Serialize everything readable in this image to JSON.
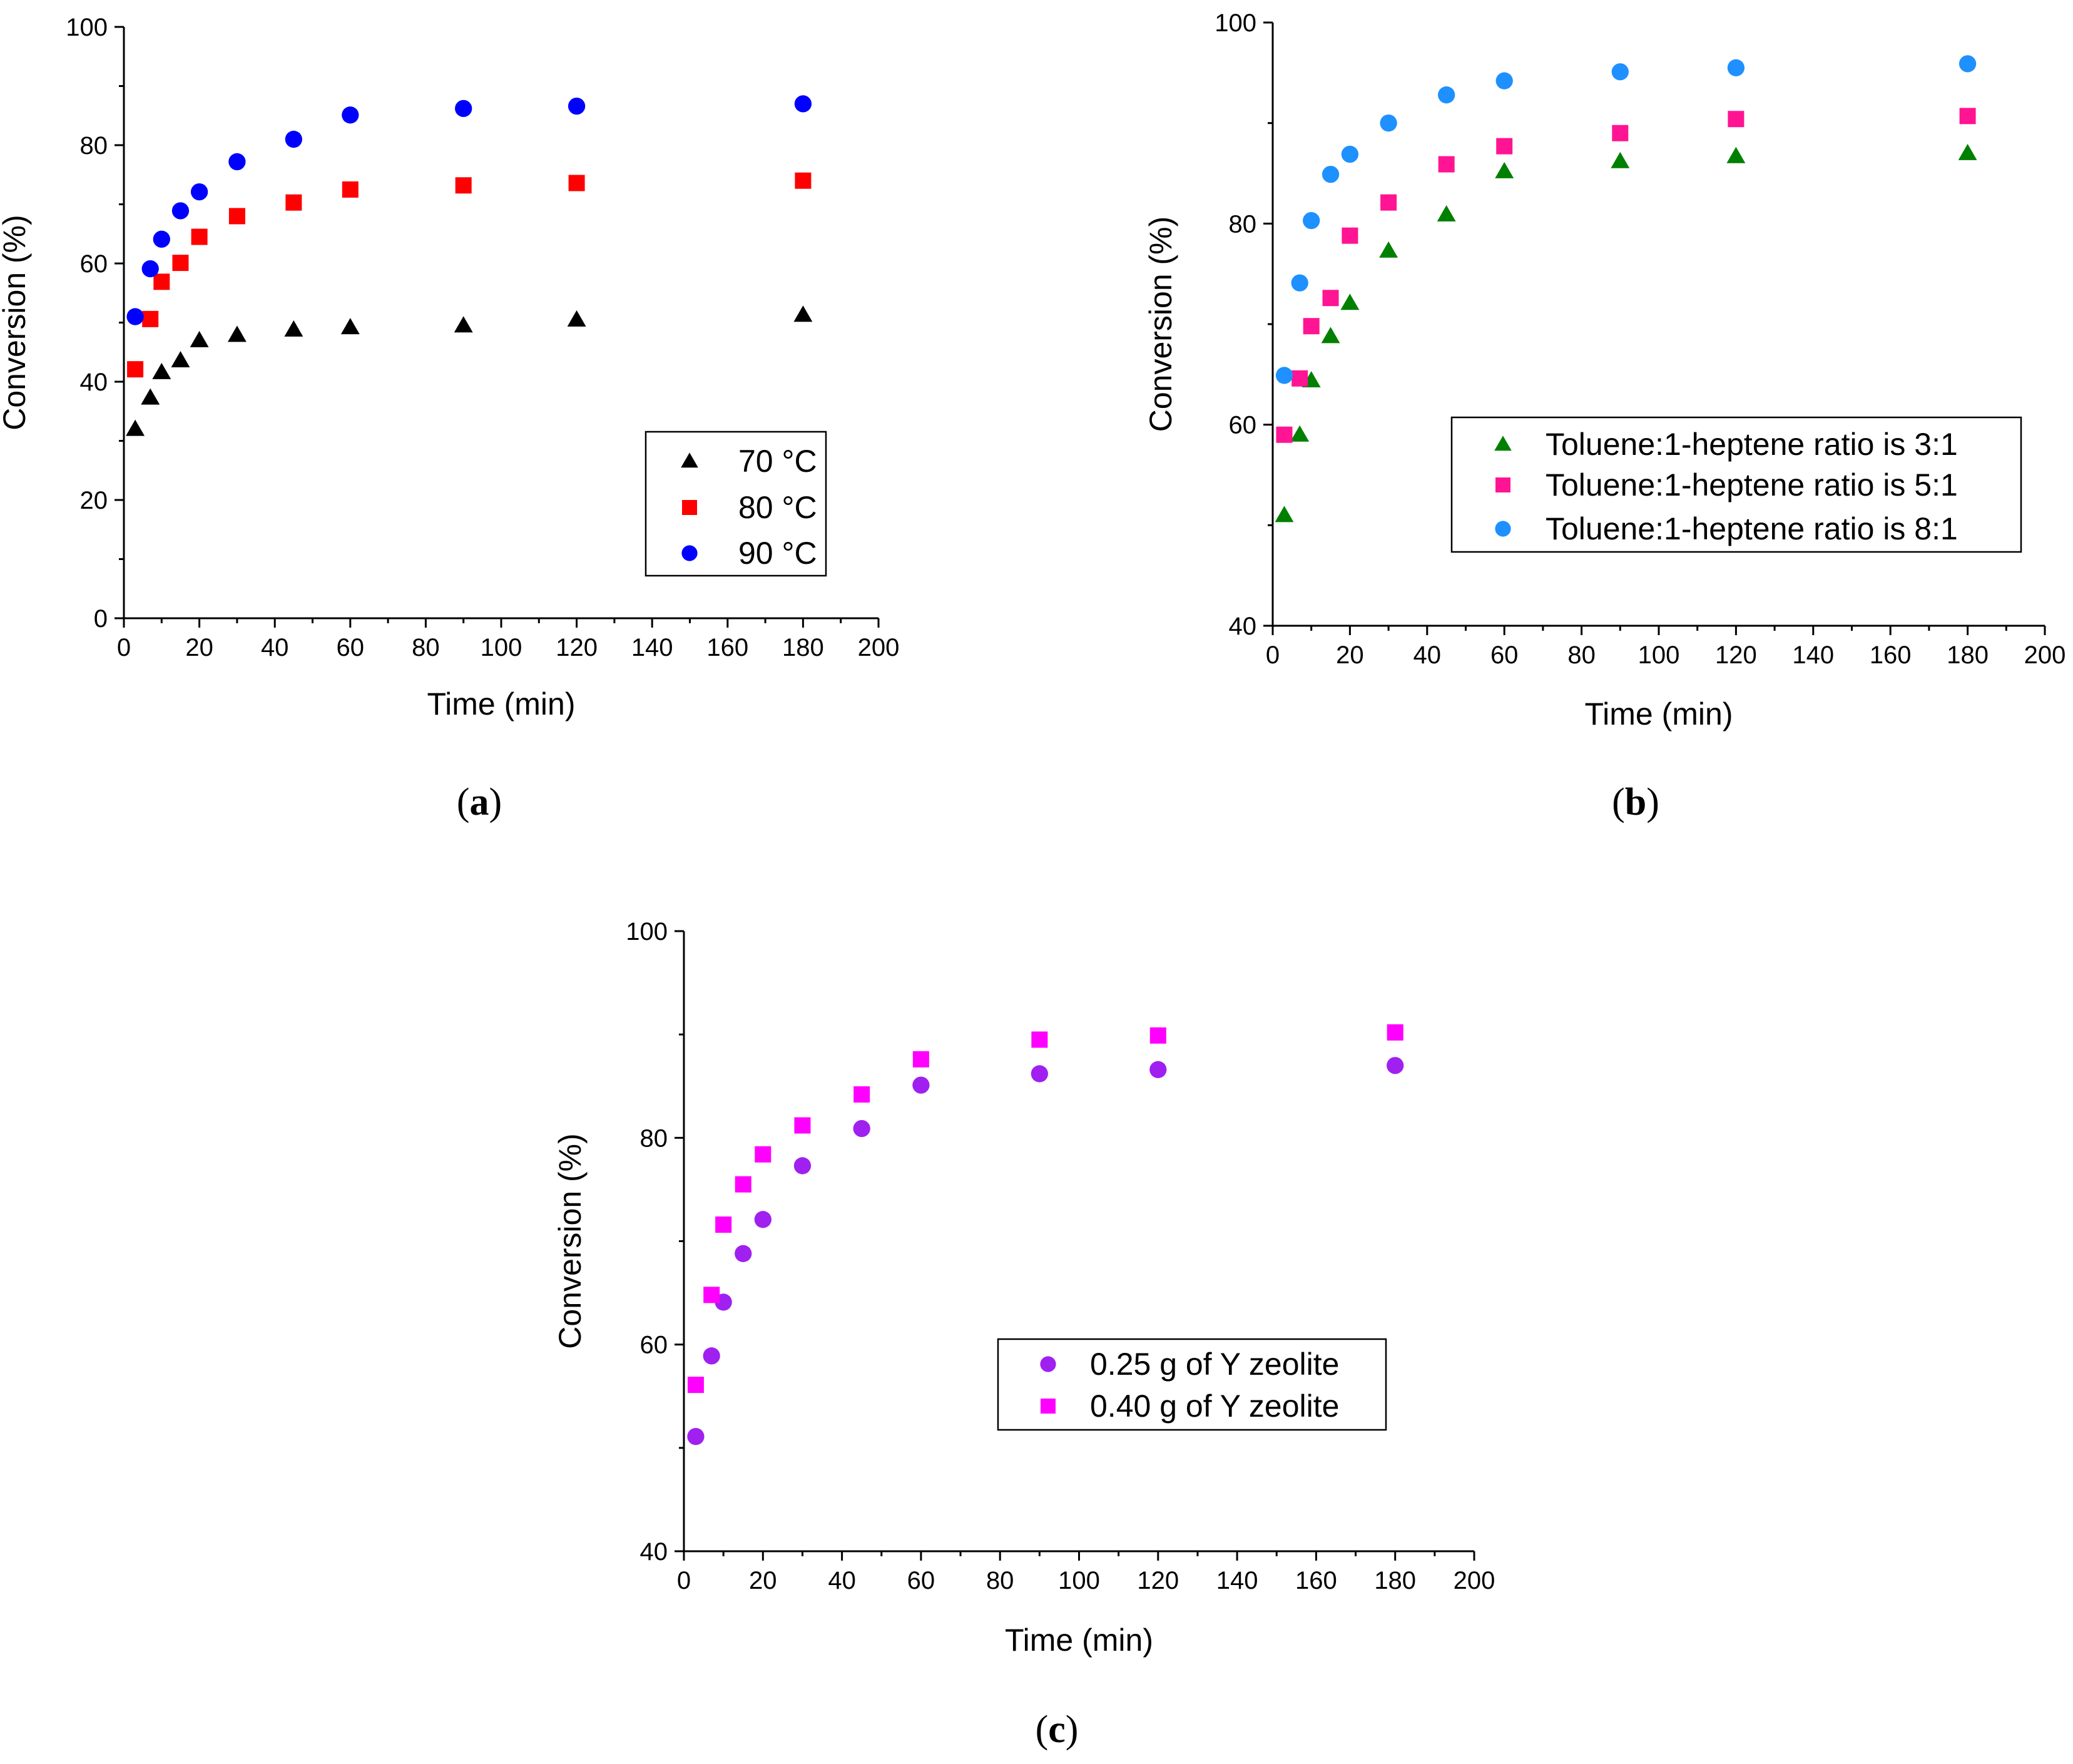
{
  "chart_data": [
    {
      "id": "a",
      "type": "scatter",
      "panel_label": {
        "open": "(",
        "letter": "a",
        "close": ")"
      },
      "xlabel": "Time (min)",
      "ylabel": "Conversion (%)",
      "xlim": [
        0,
        200
      ],
      "ylim": [
        0,
        100
      ],
      "xticks": [
        0,
        20,
        40,
        60,
        80,
        100,
        120,
        140,
        160,
        180,
        200
      ],
      "yticks": [
        0,
        20,
        40,
        60,
        80,
        100
      ],
      "legend_position": "center-right",
      "series": [
        {
          "name": "70 °C",
          "marker": "triangle",
          "color": "#000000",
          "x": [
            3,
            7,
            10,
            15,
            20,
            30,
            45,
            60,
            90,
            120,
            180
          ],
          "y": [
            32,
            37.3,
            41.6,
            43.6,
            47,
            47.9,
            48.8,
            49.2,
            49.5,
            50.5,
            51.3
          ]
        },
        {
          "name": "80 °C",
          "marker": "square",
          "color": "#ff0000",
          "x": [
            3,
            7,
            10,
            15,
            20,
            30,
            45,
            60,
            90,
            120,
            180
          ],
          "y": [
            42.1,
            50.6,
            56.9,
            60.1,
            64.5,
            68,
            70.3,
            72.5,
            73.2,
            73.6,
            74
          ]
        },
        {
          "name": "90 °C",
          "marker": "circle",
          "color": "#0000ff",
          "x": [
            3,
            7,
            10,
            15,
            20,
            30,
            45,
            60,
            90,
            120,
            180
          ],
          "y": [
            51,
            59.1,
            64.1,
            68.9,
            72.1,
            77.2,
            81,
            85.1,
            86.2,
            86.6,
            87
          ]
        }
      ]
    },
    {
      "id": "b",
      "type": "scatter",
      "panel_label": {
        "open": "(",
        "letter": "b",
        "close": ")"
      },
      "xlabel": "Time (min)",
      "ylabel": "Conversion (%)",
      "xlim": [
        0,
        200
      ],
      "ylim": [
        40,
        100
      ],
      "xticks": [
        0,
        20,
        40,
        60,
        80,
        100,
        120,
        140,
        160,
        180,
        200
      ],
      "yticks": [
        40,
        60,
        80,
        100
      ],
      "legend_position": "lower-right",
      "series": [
        {
          "name": "Toluene:1-heptene ratio is 3:1",
          "marker": "triangle",
          "color": "#008000",
          "x": [
            3,
            7,
            10,
            15,
            20,
            30,
            45,
            60,
            90,
            120,
            180
          ],
          "y": [
            51,
            59,
            64.4,
            68.8,
            72.1,
            77.3,
            80.9,
            85.2,
            86.2,
            86.7,
            87
          ]
        },
        {
          "name": "Toluene:1-heptene ratio is 5:1",
          "marker": "square",
          "color": "#ff1493",
          "x": [
            3,
            7,
            10,
            15,
            20,
            30,
            45,
            60,
            90,
            120,
            180
          ],
          "y": [
            59,
            64.6,
            69.8,
            72.6,
            78.8,
            82.1,
            85.9,
            87.7,
            89,
            90.4,
            90.7
          ]
        },
        {
          "name": "Toluene:1-heptene ratio is 8:1",
          "marker": "circle",
          "color": "#1e90ff",
          "x": [
            3,
            7,
            10,
            15,
            20,
            30,
            45,
            60,
            90,
            120,
            180
          ],
          "y": [
            64.9,
            74.1,
            80.3,
            84.9,
            86.9,
            90,
            92.8,
            94.2,
            95.1,
            95.5,
            95.9
          ]
        }
      ]
    },
    {
      "id": "c",
      "type": "scatter",
      "panel_label": {
        "open": "(",
        "letter": "c",
        "close": ")"
      },
      "xlabel": "Time (min)",
      "ylabel": "Conversion (%)",
      "xlim": [
        0,
        200
      ],
      "ylim": [
        40,
        100
      ],
      "xticks": [
        0,
        20,
        40,
        60,
        80,
        100,
        120,
        140,
        160,
        180,
        200
      ],
      "yticks": [
        40,
        60,
        80,
        100
      ],
      "legend_position": "lower-right",
      "series": [
        {
          "name": "0.25 g of Y zeolite",
          "marker": "circle",
          "color": "#a020f0",
          "x": [
            3,
            7,
            10,
            15,
            20,
            30,
            45,
            60,
            90,
            120,
            180
          ],
          "y": [
            51.1,
            58.9,
            64.1,
            68.8,
            72.1,
            77.3,
            80.9,
            85.1,
            86.2,
            86.6,
            87
          ]
        },
        {
          "name": "0.40 g of Y zeolite",
          "marker": "square",
          "color": "#ff00ff",
          "x": [
            3,
            7,
            10,
            15,
            20,
            30,
            45,
            60,
            90,
            120,
            180
          ],
          "y": [
            56.1,
            64.8,
            71.6,
            75.5,
            78.4,
            81.2,
            84.2,
            87.6,
            89.5,
            89.9,
            90.2
          ]
        }
      ]
    }
  ]
}
